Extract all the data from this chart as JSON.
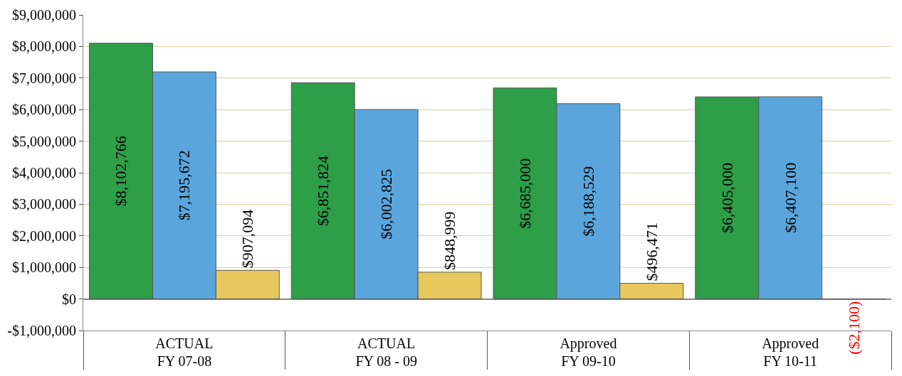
{
  "chart_data": {
    "type": "bar",
    "categories": [
      "ACTUAL\nFY 07-08",
      "ACTUAL\nFY 08 - 09",
      "Approved\nFY 09-10",
      "Approved\nFY 10-11"
    ],
    "series": [
      {
        "color": "#2e9e48",
        "values": [
          8102766,
          6851824,
          6685000,
          6405000
        ],
        "value_labels": [
          "$8,102,766",
          "$6,851,824",
          "$6,685,000",
          "$6,405,000"
        ]
      },
      {
        "color": "#5aa6dc",
        "values": [
          7195672,
          6002825,
          6188529,
          6407100
        ],
        "value_labels": [
          "$7,195,672",
          "$6,002,825",
          "$6,188,529",
          "$6,407,100"
        ]
      },
      {
        "color": "#e8c85c",
        "values": [
          907094,
          848999,
          496471,
          -2100
        ],
        "value_labels": [
          "$907,094",
          "$848,999",
          "$496,471",
          "($2,100)"
        ]
      }
    ],
    "ylim": [
      -1000000,
      9000000
    ],
    "yticks": [
      {
        "value": -1000000,
        "label": "-$1,000,000"
      },
      {
        "value": 0,
        "label": "$0"
      },
      {
        "value": 1000000,
        "label": "$1,000,000"
      },
      {
        "value": 2000000,
        "label": "$2,000,000"
      },
      {
        "value": 3000000,
        "label": "$3,000,000"
      },
      {
        "value": 4000000,
        "label": "$4,000,000"
      },
      {
        "value": 5000000,
        "label": "$5,000,000"
      },
      {
        "value": 6000000,
        "label": "$6,000,000"
      },
      {
        "value": 7000000,
        "label": "$7,000,000"
      },
      {
        "value": 8000000,
        "label": "$8,000,000"
      },
      {
        "value": 9000000,
        "label": "$9,000,000"
      }
    ],
    "grid": "y"
  }
}
